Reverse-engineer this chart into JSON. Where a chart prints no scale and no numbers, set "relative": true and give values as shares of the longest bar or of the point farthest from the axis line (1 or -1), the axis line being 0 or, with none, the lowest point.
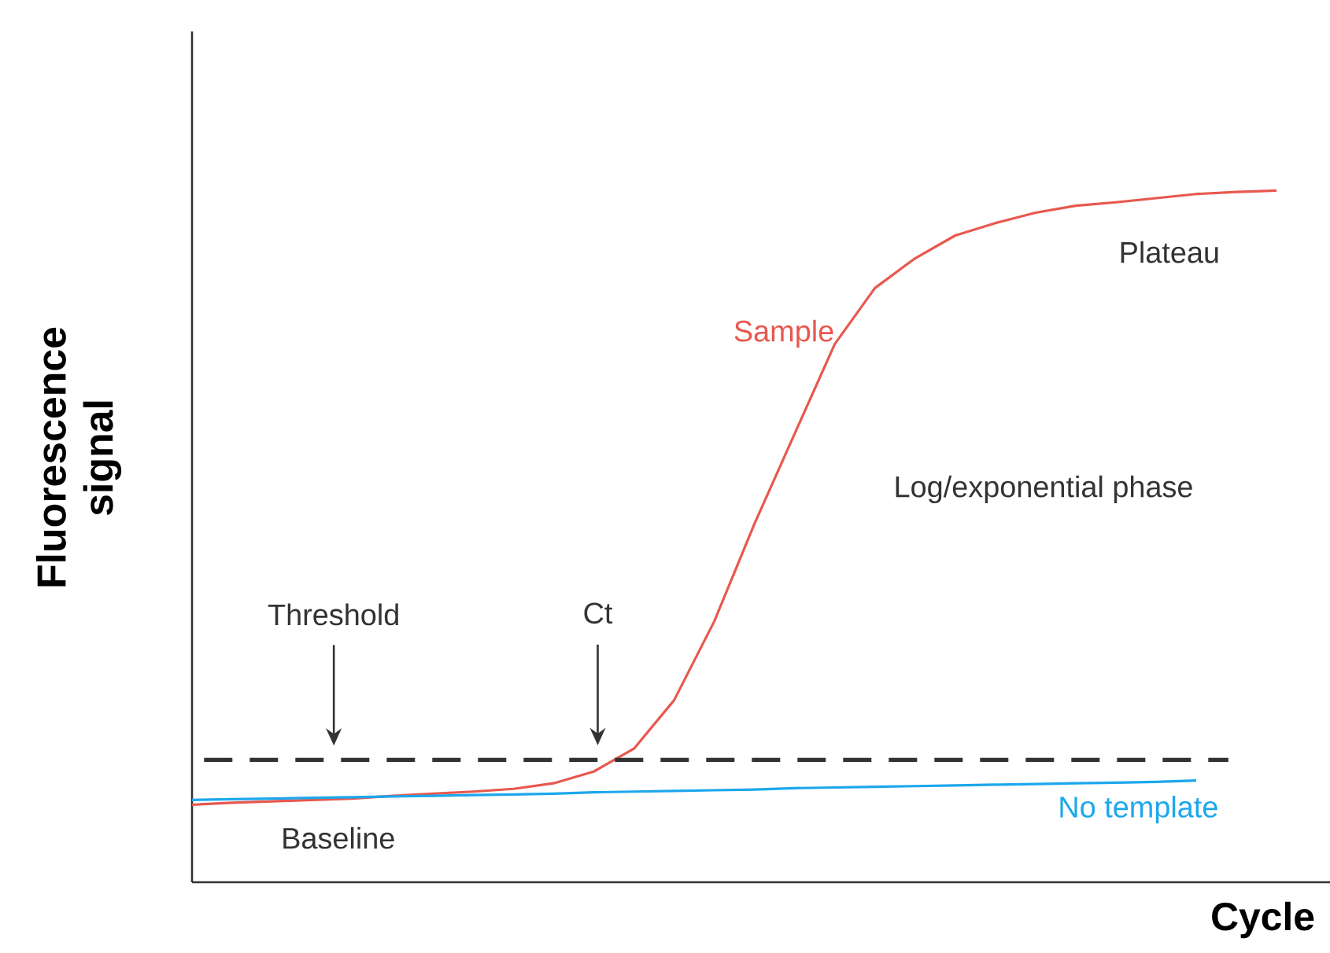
{
  "chart_data": {
    "type": "line",
    "relative": true,
    "xlabel": "Cycle",
    "ylabel": "Fluorescence signal",
    "categories": [
      null,
      null,
      null,
      null,
      null,
      null,
      null,
      null,
      null,
      null,
      null,
      null,
      null,
      null,
      null,
      null,
      null,
      null,
      null,
      null,
      null,
      null,
      null,
      null,
      null,
      null,
      null,
      null
    ],
    "series": [
      {
        "name": "Sample",
        "color": "#e8584e",
        "values": [
          0.112,
          0.115,
          0.117,
          0.119,
          0.121,
          0.125,
          0.128,
          0.131,
          0.135,
          0.143,
          0.16,
          0.193,
          0.263,
          0.377,
          0.518,
          0.648,
          0.778,
          0.859,
          0.902,
          0.935,
          0.953,
          0.968,
          0.978,
          0.983,
          0.989,
          0.995,
          0.998,
          1.0
        ]
      },
      {
        "name": "No template",
        "color": "#1ca7ec",
        "values": [
          0.119,
          0.12,
          0.121,
          0.122,
          0.123,
          0.124,
          0.125,
          0.126,
          0.127,
          0.128,
          0.13,
          0.131,
          0.132,
          0.133,
          0.134,
          0.136,
          0.137,
          0.138,
          0.139,
          0.14,
          0.141,
          0.142,
          0.143,
          0.144,
          0.145,
          0.147,
          null,
          null
        ]
      }
    ],
    "ref_lines": [
      {
        "axis": "y",
        "value": 0.177,
        "label": "Threshold",
        "color": "#333333",
        "line_style": "dashed"
      }
    ],
    "annotations": [
      "Plateau",
      "Log/exponential phase",
      "Baseline",
      "Ct"
    ]
  }
}
